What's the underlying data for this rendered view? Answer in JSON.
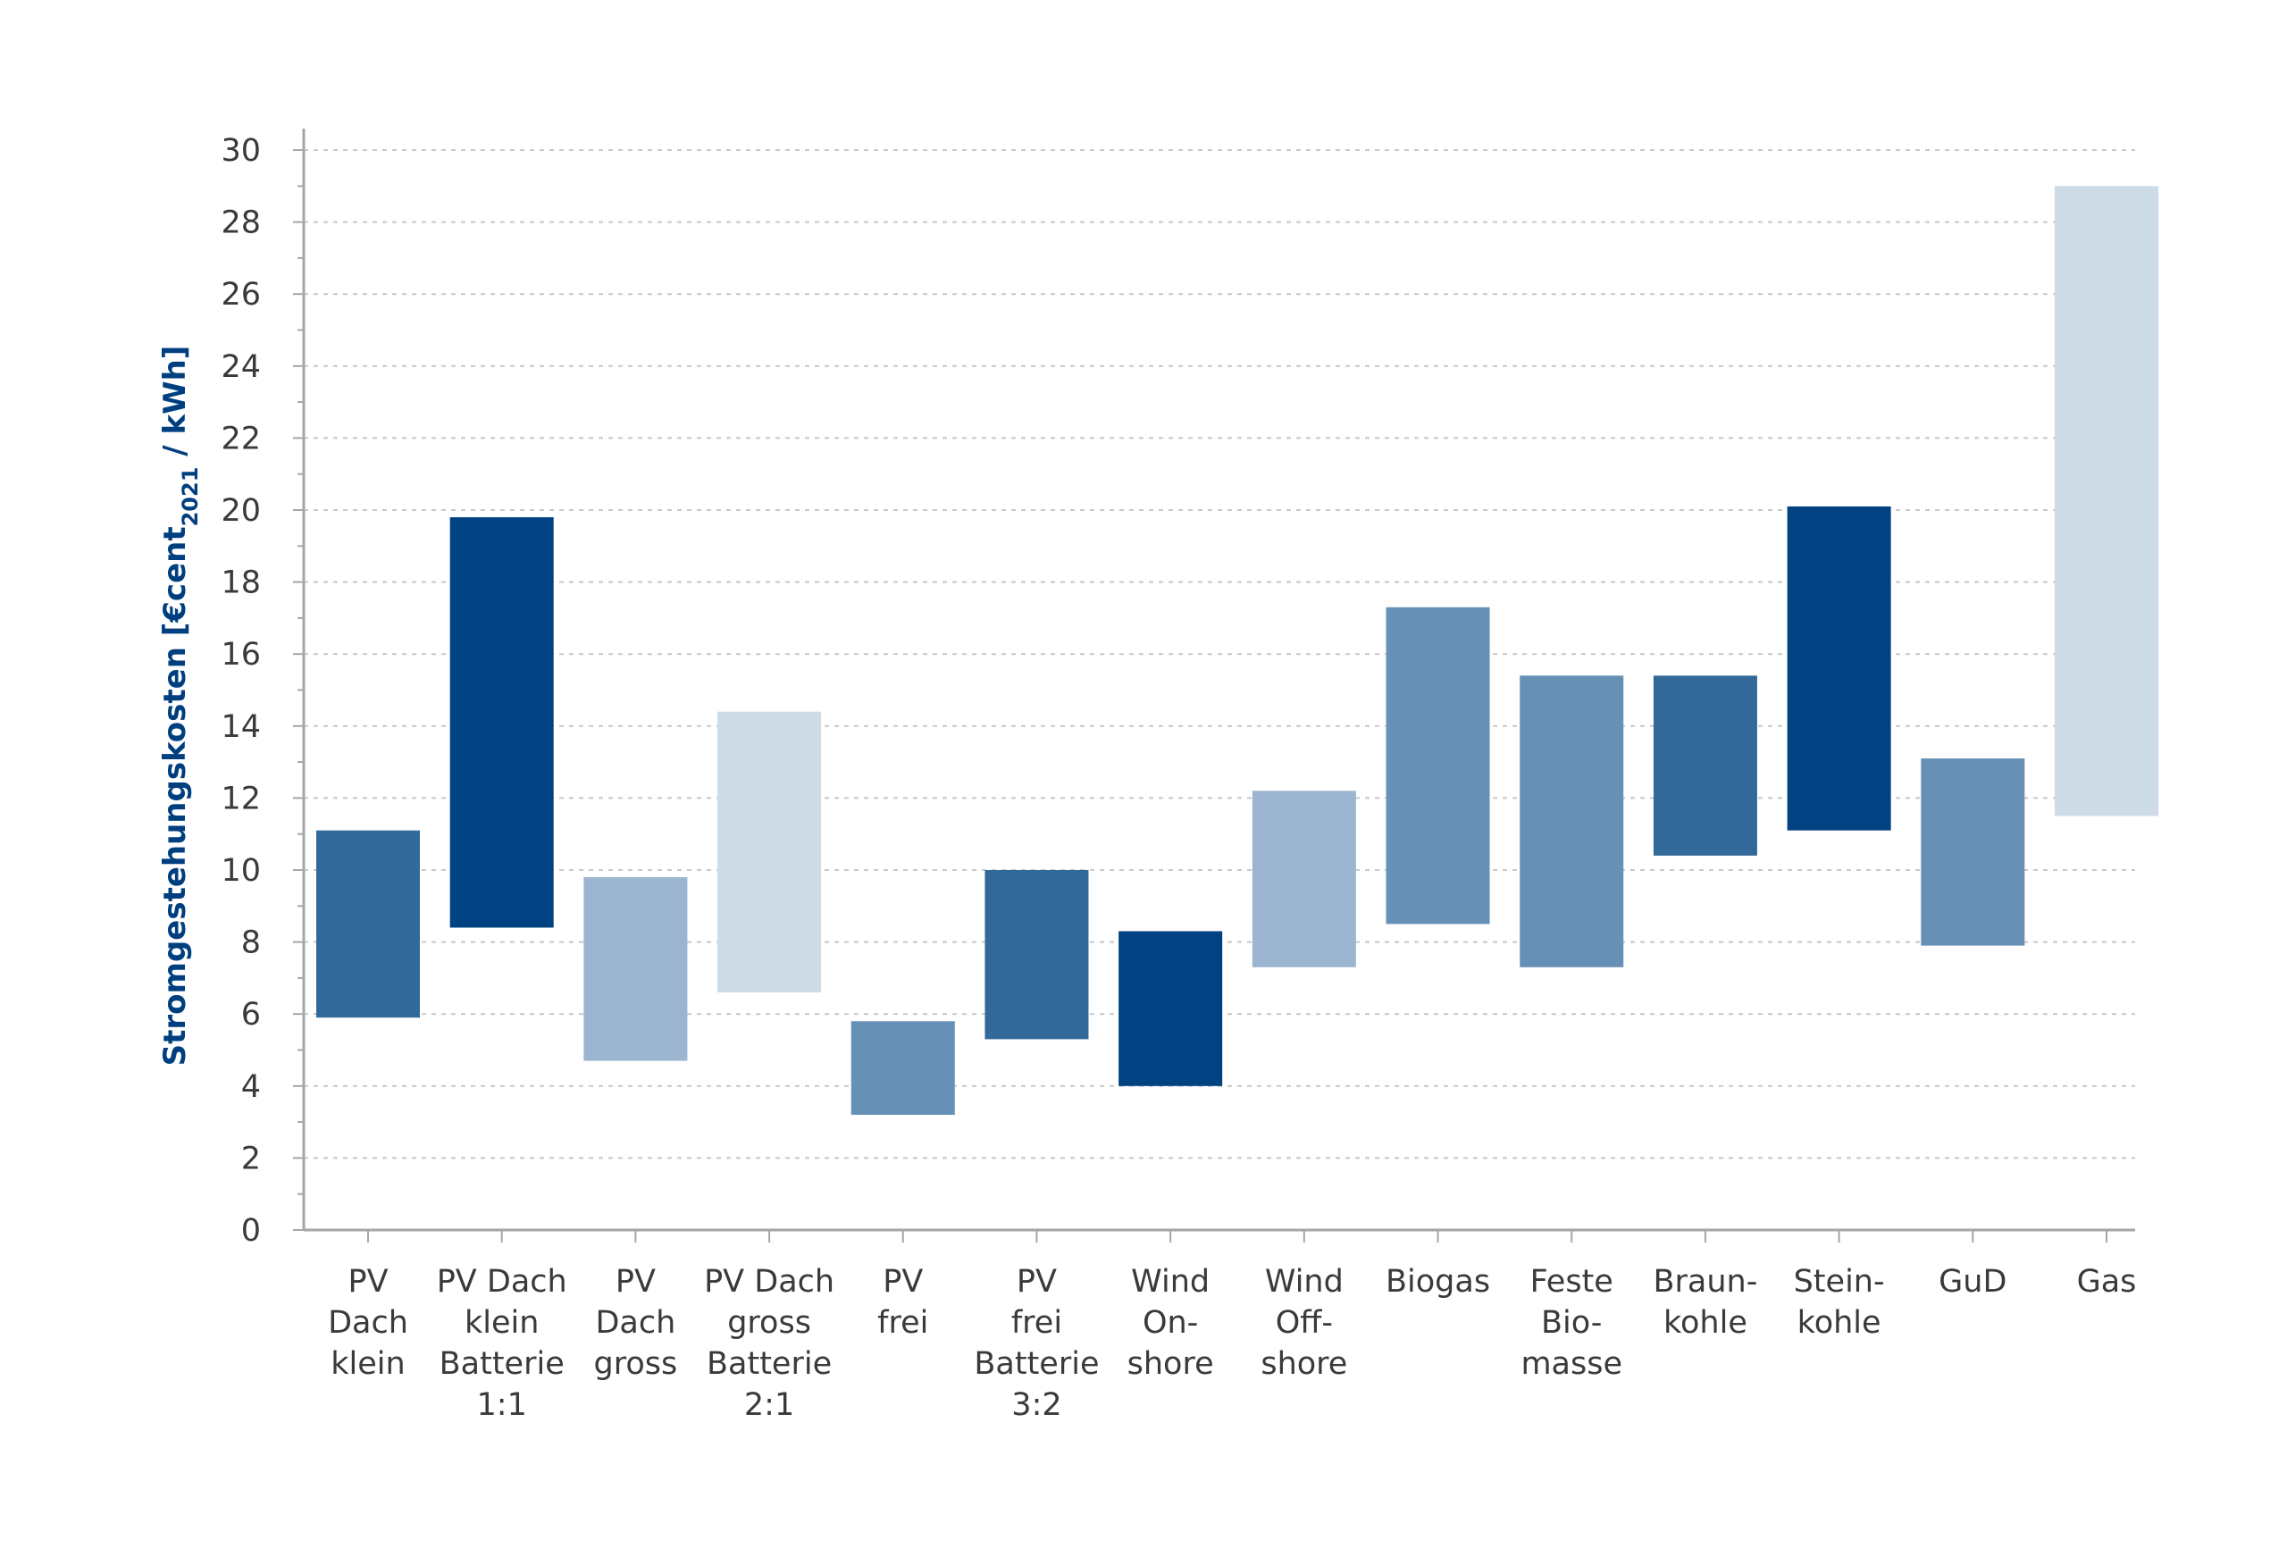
{
  "chart_data": {
    "type": "bar",
    "subtype": "floating-range",
    "ylabel": {
      "main": "Stromgestehungskosten [€cent",
      "subscript": "2021",
      "suffix": " / kWh]"
    },
    "xlabel": "",
    "ylim": [
      0,
      30
    ],
    "yticks": [
      0,
      2,
      4,
      6,
      8,
      10,
      12,
      14,
      16,
      18,
      20,
      22,
      24,
      26,
      28,
      30
    ],
    "grid": true,
    "categories": [
      [
        "PV",
        "Dach",
        "klein"
      ],
      [
        "PV Dach",
        "klein",
        "Batterie",
        "1:1"
      ],
      [
        "PV",
        "Dach",
        "gross"
      ],
      [
        "PV Dach",
        "gross",
        "Batterie",
        "2:1"
      ],
      [
        "PV",
        "frei"
      ],
      [
        "PV",
        "frei",
        "Batterie",
        "3:2"
      ],
      [
        "Wind",
        "On-",
        "shore"
      ],
      [
        "Wind",
        "Off-",
        "shore"
      ],
      [
        "Biogas"
      ],
      [
        "Feste",
        "Bio-",
        "masse"
      ],
      [
        "Braun-",
        "kohle"
      ],
      [
        "Stein-",
        "kohle"
      ],
      [
        "GuD"
      ],
      [
        "Gas"
      ]
    ],
    "ranges": [
      [
        5.9,
        11.1
      ],
      [
        8.4,
        19.8
      ],
      [
        4.7,
        9.8
      ],
      [
        6.6,
        14.4
      ],
      [
        3.2,
        5.8
      ],
      [
        5.3,
        10.0
      ],
      [
        4.0,
        8.3
      ],
      [
        7.3,
        12.2
      ],
      [
        8.5,
        17.3
      ],
      [
        7.3,
        15.4
      ],
      [
        10.4,
        15.4
      ],
      [
        11.1,
        20.1
      ],
      [
        7.9,
        13.1
      ],
      [
        11.5,
        29.0
      ]
    ],
    "bar_colors": [
      "#336999",
      "#004282",
      "#9bb4cf",
      "#cddbe7",
      "#6690b6",
      "#336999",
      "#004282",
      "#9bb4cf",
      "#6690b6",
      "#6690b6",
      "#336999",
      "#004282",
      "#6690b6",
      "#cddbe7"
    ],
    "colors": {
      "axis": "#a6a6a6",
      "grid": "#c8c8c8",
      "tick_text": "#3a3a3a",
      "ylabel": "#003f7f"
    }
  }
}
